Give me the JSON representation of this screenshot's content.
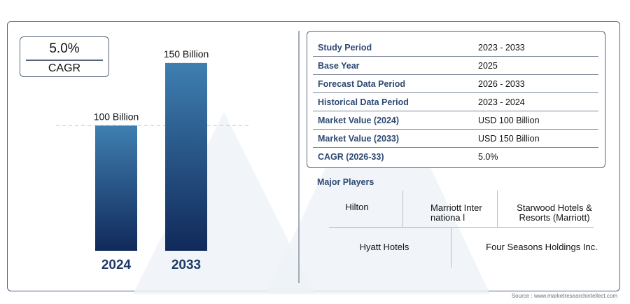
{
  "cagr": {
    "value": "5.0%",
    "label": "CAGR"
  },
  "chart_data": {
    "type": "bar",
    "categories": [
      "2024",
      "2033"
    ],
    "values": [
      100,
      150
    ],
    "data_labels": [
      "100 Billion",
      "150 Billion"
    ],
    "unit": "Billion",
    "ylim": [
      0,
      160
    ],
    "grid": false,
    "reference_line": 100,
    "colors": {
      "bar_top": "#3f7fb1",
      "bar_bottom": "#10295a",
      "category_text": "#1f3a68"
    }
  },
  "study_table": [
    {
      "key": "Study Period",
      "value": "2023 - 2033"
    },
    {
      "key": "Base Year",
      "value": "2025"
    },
    {
      "key": "Forecast Data Period",
      "value": "2026 - 2033"
    },
    {
      "key": "Historical Data Period",
      "value": "2023 - 2024"
    },
    {
      "key": "Market Value (2024)",
      "value": "USD 100 Billion"
    },
    {
      "key": "Market Value (2033)",
      "value": "USD 150 Billion"
    },
    {
      "key": "CAGR (2026-33)",
      "value": "5.0%"
    }
  ],
  "major_players": {
    "title": "Major Players",
    "row1": [
      "Hilton",
      "Marriott Internationa l",
      "Starwood Hotels & Resorts (Marriott)"
    ],
    "row2": [
      "Hyatt Hotels",
      "Four Seasons Holdings Inc."
    ]
  },
  "source": "Source : www.marketresearchintellect.com",
  "colors": {
    "frame": "#4b5f86",
    "key_text": "#2e4a73"
  }
}
